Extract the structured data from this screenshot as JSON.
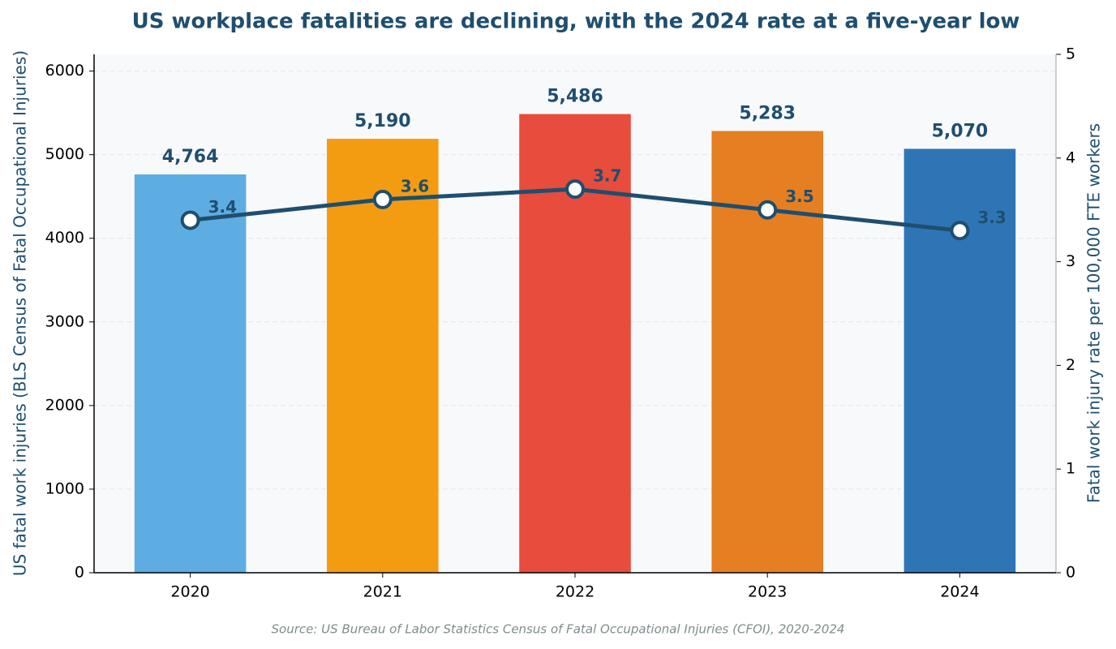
{
  "chart_data": {
    "type": "bar",
    "title": "US workplace fatalities are declining, with the 2024 rate at a five-year low",
    "y_label": "US fatal work injuries (BLS Census of Fatal Occupational Injuries)",
    "y2_label": "Fatal work injury rate per 100,000 FTE workers",
    "source": "Source: US Bureau of Labor Statistics Census of Fatal Occupational Injuries (CFOI), 2020-2024",
    "categories": [
      "2020",
      "2021",
      "2022",
      "2023",
      "2024"
    ],
    "series": [
      {
        "type": "bar",
        "colors": [
          "#5dade2",
          "#f39c12",
          "#e74c3c",
          "#e67e22",
          "#2e75b6"
        ],
        "values": [
          4764,
          5190,
          5486,
          5283,
          5070
        ],
        "value_labels": [
          "4,764",
          "5,190",
          "5,486",
          "5,283",
          "5,070"
        ]
      },
      {
        "type": "line",
        "axis": "y2",
        "color": "#1f4e6e",
        "values": [
          3.4,
          3.6,
          3.7,
          3.5,
          3.3
        ]
      }
    ],
    "ylim": [
      0,
      6200
    ],
    "yticks": [
      0,
      1000,
      2000,
      3000,
      4000,
      5000,
      6000
    ],
    "y2lim": [
      0,
      5
    ],
    "y2ticks": [
      0,
      1,
      2,
      3,
      4,
      5
    ],
    "grid": true
  }
}
